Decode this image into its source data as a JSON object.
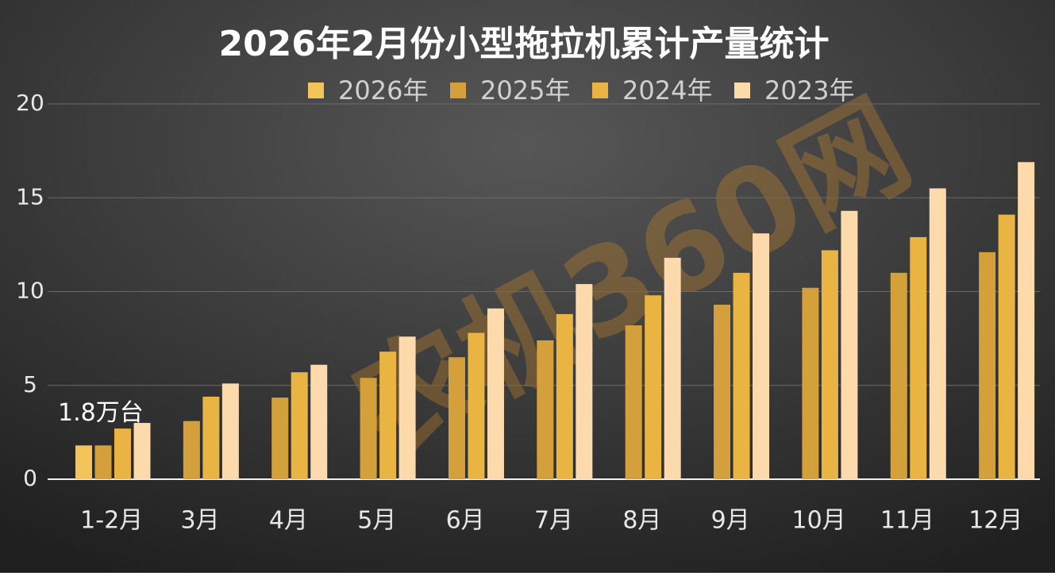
{
  "chart_data": {
    "type": "bar",
    "title": "2026年2月份小型拖拉机累计产量统计",
    "watermark": "农机360网",
    "categories": [
      "1-2月",
      "3月",
      "4月",
      "5月",
      "6月",
      "7月",
      "8月",
      "9月",
      "10月",
      "11月",
      "12月"
    ],
    "series": [
      {
        "name": "2026年",
        "color": "#f2c45a",
        "values": [
          1.8,
          null,
          null,
          null,
          null,
          null,
          null,
          null,
          null,
          null,
          null
        ],
        "value_labels": [
          "1.8万台",
          null,
          null,
          null,
          null,
          null,
          null,
          null,
          null,
          null,
          null
        ]
      },
      {
        "name": "2025年",
        "color": "#d4a03c",
        "values": [
          1.8,
          3.1,
          4.35,
          5.4,
          6.5,
          7.4,
          8.2,
          9.3,
          10.2,
          11.0,
          12.1
        ]
      },
      {
        "name": "2024年",
        "color": "#eab442",
        "values": [
          2.7,
          4.4,
          5.7,
          6.8,
          7.8,
          8.8,
          9.8,
          11.0,
          12.2,
          12.9,
          14.1
        ]
      },
      {
        "name": "2023年",
        "color": "#fcdaac",
        "values": [
          3.0,
          5.1,
          6.1,
          7.6,
          9.1,
          10.4,
          11.8,
          13.1,
          14.3,
          15.5,
          16.9
        ]
      }
    ],
    "ylim": [
      0,
      20
    ],
    "yticks": [
      0,
      5,
      10,
      15,
      20
    ],
    "grid": true,
    "legend": "top"
  }
}
